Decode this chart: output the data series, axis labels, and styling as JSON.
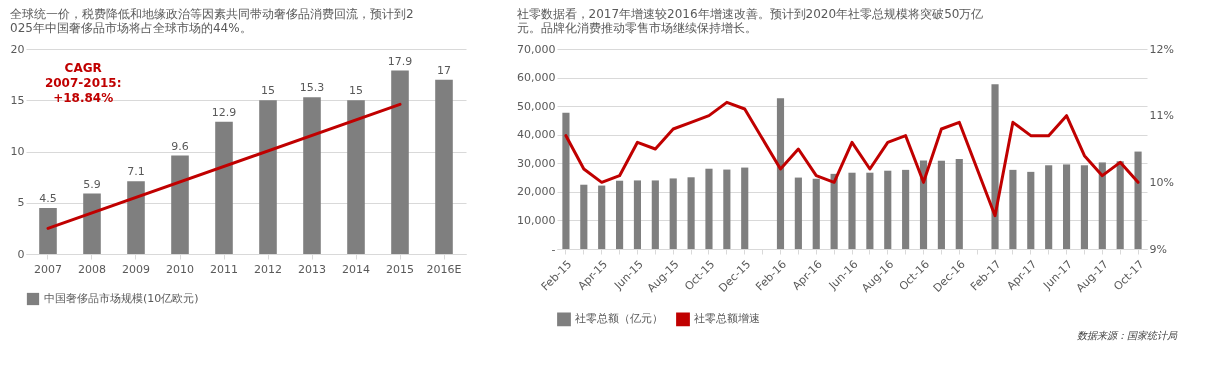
{
  "chart_data": [
    {
      "type": "bar",
      "title": "全球统一价，税费降低和地缘政治等因素共同带动奢侈品消费回流，预计到2025年中国奢侈品市场将占全球市场的44%。",
      "categories": [
        "2007",
        "2008",
        "2009",
        "2010",
        "2011",
        "2012",
        "2013",
        "2014",
        "2015",
        "2016E"
      ],
      "series": [
        {
          "name": "中国奢侈品市场规模(10亿欧元)",
          "color": "#7f7f7f",
          "values": [
            4.5,
            5.9,
            7.1,
            9.6,
            12.9,
            15,
            15.3,
            15,
            17.9,
            17
          ],
          "value_labels": [
            "4.5",
            "5.9",
            "7.1",
            "9.6",
            "12.9",
            "15",
            "15.3",
            "15",
            "17.9",
            "17"
          ]
        },
        {
          "type": "line",
          "color": "#c00000",
          "values": [
            2.5,
            null,
            null,
            null,
            null,
            null,
            null,
            null,
            14.6,
            null
          ]
        }
      ],
      "ylim": [
        0,
        20
      ],
      "yticks": [
        0,
        5,
        10,
        15,
        20
      ],
      "grid": "y",
      "legend": "bottom",
      "annotations": [
        "CAGR 2007-2015: +18.84%"
      ]
    },
    {
      "type": "bar",
      "title": "社零数据看，2017年增速较2016年增速改善。预计到2020年社零总规模将突破50万亿元。品牌化消费推动零售市场继续保持增长。",
      "categories": [
        "Feb-15",
        null,
        "Apr-15",
        null,
        "Jun-15",
        null,
        "Aug-15",
        null,
        "Oct-15",
        null,
        "Dec-15",
        null,
        "Feb-16",
        null,
        "Apr-16",
        null,
        "Jun-16",
        null,
        "Aug-16",
        null,
        "Oct-16",
        null,
        "Dec-16",
        null,
        "Feb-17",
        null,
        "Apr-17",
        null,
        "Jun-17",
        null,
        "Aug-17",
        null,
        "Oct-17"
      ],
      "series": [
        {
          "name": "社零总额（亿元）",
          "color": "#7f7f7f",
          "values": [
            47700,
            22500,
            22200,
            23900,
            24000,
            24000,
            24700,
            25100,
            28100,
            27800,
            28500,
            null,
            52800,
            25000,
            24600,
            26300,
            26700,
            26700,
            27400,
            27700,
            31000,
            30900,
            31500,
            null,
            57700,
            27700,
            27000,
            29300,
            29600,
            29300,
            30300,
            30700,
            34100
          ]
        },
        {
          "name": "社零总额增速",
          "type": "line",
          "axis": "y2",
          "color": "#c00000",
          "values": [
            10.7,
            10.2,
            10.0,
            10.1,
            10.6,
            10.5,
            10.8,
            10.9,
            11.0,
            11.2,
            11.1,
            null,
            10.2,
            10.5,
            10.1,
            10.0,
            10.6,
            10.2,
            10.6,
            10.7,
            10.0,
            10.8,
            10.9,
            null,
            9.5,
            10.9,
            10.7,
            10.7,
            11.0,
            10.4,
            10.1,
            10.3,
            10.0
          ]
        }
      ],
      "ylim": [
        0,
        70000
      ],
      "yticks": [
        {
          "value": 0,
          "label": "-"
        },
        {
          "value": 10000,
          "label": "10,000"
        },
        {
          "value": 20000,
          "label": "20,000"
        },
        {
          "value": 30000,
          "label": "30,000"
        },
        {
          "value": 40000,
          "label": "40,000"
        },
        {
          "value": 50000,
          "label": "50,000"
        },
        {
          "value": 60000,
          "label": "60,000"
        },
        {
          "value": 70000,
          "label": "70,000"
        }
      ],
      "y2lim": [
        9,
        12
      ],
      "y2ticks": [
        {
          "value": 9,
          "label": "9%"
        },
        {
          "value": 10,
          "label": "10%"
        },
        {
          "value": 11,
          "label": "11%"
        },
        {
          "value": 12,
          "label": "12%"
        }
      ],
      "grid": "y",
      "legend": "bottom",
      "annotations": [
        "数据来源：国家统计局"
      ]
    }
  ]
}
